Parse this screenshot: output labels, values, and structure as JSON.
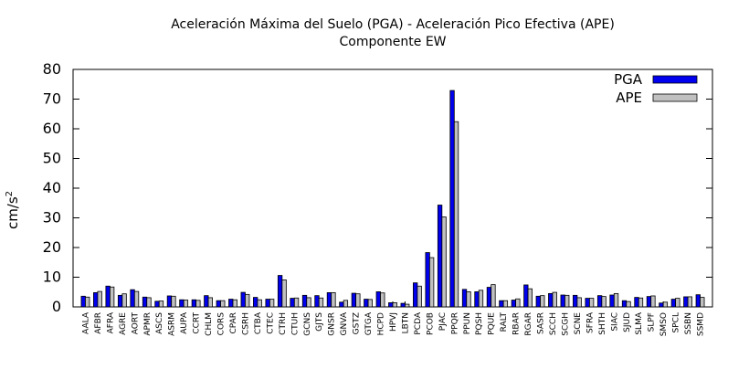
{
  "chart_data": {
    "type": "bar",
    "title": "Aceleración Máxima del Suelo (PGA) -  Aceleración Pico Efectiva (APE)",
    "subtitle": "Componente EW",
    "ylabel": "cm/s",
    "ylabel_sup": "2",
    "xlabel": "",
    "ylim": [
      0,
      80
    ],
    "yticks": [
      0,
      10,
      20,
      30,
      40,
      50,
      60,
      70,
      80
    ],
    "grid": false,
    "legend_position": "top-right",
    "categories": [
      "AALA",
      "AFBR",
      "AFRA",
      "AGRE",
      "AORT",
      "APMR",
      "ASCS",
      "ASRM",
      "AUPA",
      "CCRT",
      "CHLM",
      "CORS",
      "CPAR",
      "CSRH",
      "CTBA",
      "CTEC",
      "CTRH",
      "CTUH",
      "GCNS",
      "GJTS",
      "GNSR",
      "GNVA",
      "GSTZ",
      "GTGA",
      "HCPD",
      "HPVJ",
      "LBTN",
      "PCDA",
      "PCOB",
      "PJAC",
      "PPQR",
      "PPUN",
      "PQSH",
      "PQUE",
      "RALT",
      "RBAR",
      "RGAR",
      "SASR",
      "SCCH",
      "SCGH",
      "SCNE",
      "SFRA",
      "SHTH",
      "SIAC",
      "SJUD",
      "SLMA",
      "SLPF",
      "SMSO",
      "SPCL",
      "SSBN",
      "SSMD"
    ],
    "series": [
      {
        "name": "PGA",
        "color": "#0000ee",
        "values": [
          3.6,
          4.8,
          7.0,
          3.9,
          5.8,
          3.3,
          1.9,
          3.7,
          2.4,
          2.4,
          3.8,
          2.1,
          2.6,
          4.9,
          3.2,
          2.6,
          10.6,
          2.9,
          3.9,
          3.8,
          4.8,
          1.6,
          4.6,
          2.6,
          5.1,
          1.4,
          1.2,
          8.1,
          18.3,
          34.3,
          72.9,
          5.9,
          5.1,
          6.6,
          2.1,
          2.3,
          7.4,
          3.6,
          4.5,
          4.0,
          3.9,
          2.9,
          3.8,
          4.0,
          2.1,
          3.2,
          3.5,
          1.3,
          2.6,
          3.4,
          4.1
        ]
      },
      {
        "name": "APE",
        "color": "#c0c0c0",
        "values": [
          3.3,
          5.2,
          6.7,
          4.4,
          5.2,
          3.1,
          2.0,
          3.6,
          2.3,
          2.2,
          3.1,
          2.1,
          2.4,
          4.2,
          2.4,
          2.6,
          9.1,
          3.0,
          3.1,
          3.0,
          4.8,
          2.2,
          4.4,
          2.5,
          4.7,
          1.4,
          0.9,
          7.0,
          16.6,
          30.3,
          62.4,
          5.1,
          5.6,
          7.5,
          2.1,
          2.7,
          6.1,
          3.8,
          4.9,
          3.9,
          3.1,
          2.9,
          3.5,
          4.5,
          1.8,
          3.0,
          3.7,
          1.6,
          2.9,
          3.4,
          3.2
        ]
      }
    ]
  }
}
